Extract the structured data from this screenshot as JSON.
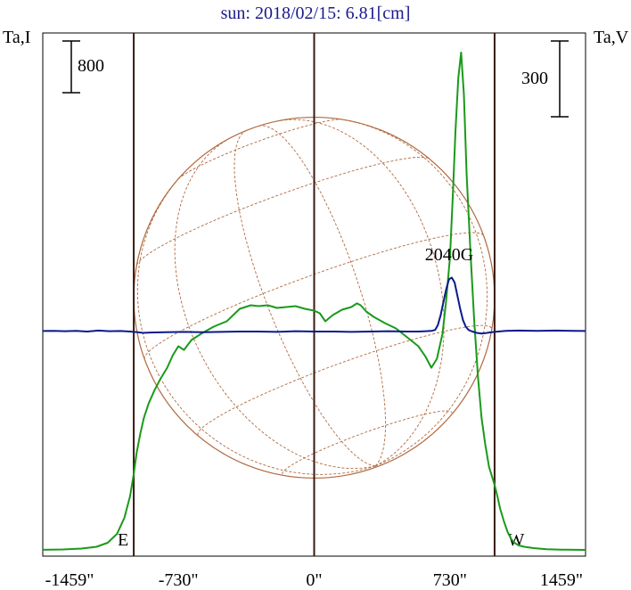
{
  "chart_data": {
    "type": "line",
    "title": "sun: 2018/02/15: 6.81[cm]",
    "ylabel_left": "Ta,I",
    "ylabel_right": "Ta,V",
    "scale_left": "800",
    "scale_right": "300",
    "x_ticks": [
      "-1459\"",
      "-730\"",
      "0\"",
      "730\"",
      "1459\""
    ],
    "x_tick_values": [
      -1459,
      -730,
      0,
      730,
      1459
    ],
    "xlim": [
      -1459,
      1459
    ],
    "limb_markers": [
      {
        "label": "E",
        "x": -970
      },
      {
        "label": "W",
        "x": 970
      }
    ],
    "center_line_x": 0,
    "annotation": {
      "text": "2040G",
      "x": 740
    },
    "grid": false,
    "colors": {
      "intensity": "#1a9a1a",
      "polarization": "#0a1a8c",
      "disk": "#b06a40",
      "markers": "#3a1a10",
      "title": "#1a1a8c"
    },
    "series": [
      {
        "name": "",
        "color_key": "intensity",
        "x": [
          -1459,
          -1350,
          -1250,
          -1170,
          -1110,
          -1060,
          -1020,
          -990,
          -970,
          -955,
          -935,
          -915,
          -890,
          -860,
          -825,
          -790,
          -760,
          -730,
          -700,
          -660,
          -600,
          -540,
          -470,
          -400,
          -340,
          -300,
          -250,
          -200,
          -150,
          -100,
          -50,
          0,
          30,
          60,
          100,
          150,
          200,
          230,
          250,
          280,
          320,
          380,
          440,
          500,
          560,
          600,
          630,
          660,
          690,
          710,
          730,
          745,
          760,
          775,
          790,
          805,
          820,
          840,
          860,
          880,
          900,
          920,
          940,
          955,
          970,
          985,
          1000,
          1020,
          1040,
          1060,
          1080,
          1100,
          1130,
          1180,
          1250,
          1330,
          1400,
          1459
        ],
        "y": [
          0.5,
          5,
          15,
          35,
          80,
          180,
          360,
          600,
          850,
          1080,
          1300,
          1480,
          1640,
          1780,
          1920,
          2040,
          2180,
          2280,
          2240,
          2350,
          2430,
          2500,
          2560,
          2700,
          2740,
          2730,
          2740,
          2710,
          2720,
          2730,
          2700,
          2680,
          2650,
          2560,
          2630,
          2690,
          2720,
          2760,
          2740,
          2670,
          2610,
          2540,
          2480,
          2380,
          2280,
          2160,
          2040,
          2140,
          2420,
          2800,
          3280,
          3950,
          4700,
          5280,
          5570,
          5100,
          4200,
          3350,
          2580,
          1950,
          1480,
          1180,
          930,
          830,
          730,
          600,
          460,
          320,
          200,
          120,
          75,
          50,
          35,
          20,
          8,
          3,
          1,
          0
        ]
      },
      {
        "name": "",
        "color_key": "polarization",
        "x": [
          -1459,
          -1400,
          -1340,
          -1280,
          -1220,
          -1160,
          -1100,
          -1040,
          -990,
          -950,
          -920,
          -880,
          -800,
          -700,
          -600,
          -500,
          -400,
          -300,
          -200,
          -100,
          0,
          100,
          200,
          300,
          400,
          500,
          560,
          600,
          630,
          650,
          665,
          680,
          695,
          710,
          725,
          740,
          755,
          770,
          785,
          800,
          815,
          830,
          850,
          875,
          900,
          920,
          940,
          955,
          970,
          990,
          1030,
          1100,
          1200,
          1300,
          1400,
          1459
        ],
        "y": [
          1.5,
          2,
          1,
          2,
          0,
          3,
          1,
          1.5,
          0,
          -2,
          -4,
          -3,
          -2,
          -1,
          -2,
          -1,
          0,
          0,
          -1,
          1,
          0,
          0,
          -1,
          0,
          1,
          0,
          0,
          1,
          2,
          5,
          20,
          50,
          90,
          130,
          160,
          165,
          150,
          110,
          70,
          35,
          15,
          5,
          0,
          -4,
          -6,
          -5,
          -3,
          -2,
          -1,
          0,
          2,
          3,
          2,
          3,
          2,
          1.5
        ]
      }
    ]
  }
}
